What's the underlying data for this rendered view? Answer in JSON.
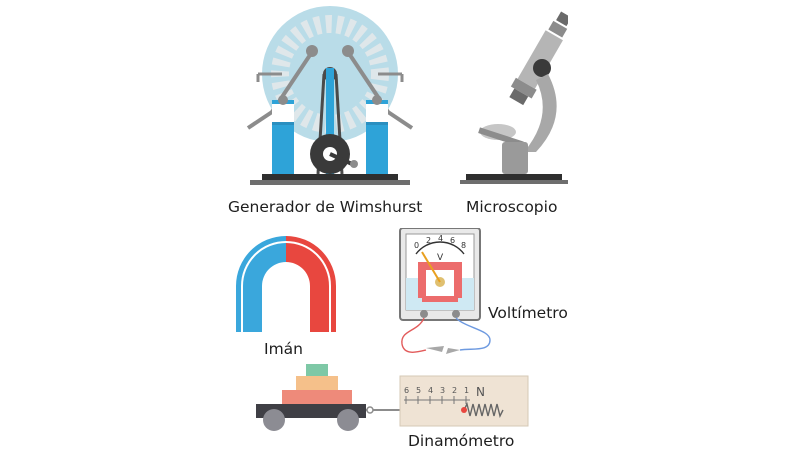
{
  "labels": {
    "wimshurst": "Generador de Wimshurst",
    "microscope": "Microscopio",
    "magnet": "Imán",
    "voltmeter": "Voltímetro",
    "dynamometer": "Dinamómetro"
  },
  "voltmeter_face": {
    "ticks": [
      "0",
      "2",
      "4",
      "6",
      "8"
    ],
    "unit": "V"
  },
  "dynamometer_scale": {
    "ticks": [
      "6",
      "5",
      "4",
      "3",
      "2",
      "1"
    ],
    "unit": "N"
  },
  "colors": {
    "wimshurst_disc": "#b9dce8",
    "jar_blue": "#2ea3d8",
    "microscope_gray": "#a8a8a8",
    "magnet_blue": "#3aa7dc",
    "magnet_red": "#e8473f",
    "voltmeter_red": "#ec6c6c",
    "cart_dark": "#3f3f45"
  },
  "icons": [
    "wimshurst-machine-icon",
    "microscope-icon",
    "horseshoe-magnet-icon",
    "voltmeter-icon",
    "dynamometer-icon"
  ]
}
